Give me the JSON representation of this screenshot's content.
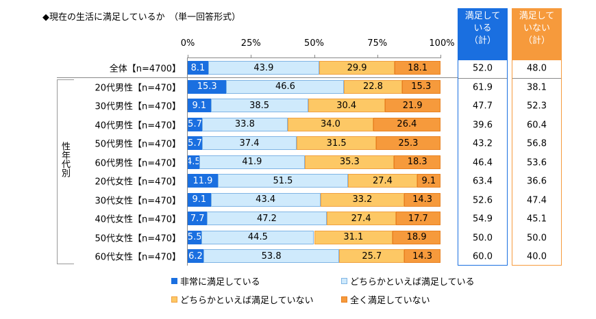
{
  "chart_data": {
    "type": "bar",
    "orientation": "horizontal-stacked-100",
    "title": "◆現在の生活に満足しているか　（単一回答形式）",
    "xticks": [
      "0%",
      "25%",
      "50%",
      "75%",
      "100%"
    ],
    "xlim": [
      0,
      100
    ],
    "group_label": "性年代別",
    "categories": [
      "全体【n=4700】",
      "20代男性【n=470】",
      "30代男性【n=470】",
      "40代男性【n=470】",
      "50代男性【n=470】",
      "60代男性【n=470】",
      "20代女性【n=470】",
      "30代女性【n=470】",
      "40代女性【n=470】",
      "50代女性【n=470】",
      "60代女性【n=470】"
    ],
    "series": [
      {
        "name": "非常に満足している",
        "color": "#1a6fe0",
        "values": [
          8.1,
          15.3,
          9.1,
          5.7,
          5.7,
          4.5,
          11.9,
          9.1,
          7.7,
          5.5,
          6.2
        ]
      },
      {
        "name": "どちらかといえば満足している",
        "color": "#cfeafc",
        "values": [
          43.9,
          46.6,
          38.5,
          33.8,
          37.4,
          41.9,
          51.5,
          43.4,
          47.2,
          44.5,
          53.8
        ]
      },
      {
        "name": "どちらかといえば満足していない",
        "color": "#fdc865",
        "values": [
          29.9,
          22.8,
          30.4,
          34.0,
          31.5,
          35.3,
          27.4,
          33.2,
          27.4,
          31.1,
          25.7
        ]
      },
      {
        "name": "全く満足していない",
        "color": "#f69a3c",
        "values": [
          18.1,
          15.3,
          21.9,
          26.4,
          25.3,
          18.3,
          9.1,
          14.3,
          17.7,
          18.9,
          14.3
        ]
      }
    ],
    "summary": [
      {
        "header": "満足して\nいる\n（計）",
        "color": "#1a6fe0",
        "values": [
          "52.0",
          "61.9",
          "47.7",
          "39.6",
          "43.2",
          "46.4",
          "63.4",
          "52.6",
          "54.9",
          "50.0",
          "60.0"
        ]
      },
      {
        "header": "満足して\nいない\n（計）",
        "color": "#f69a3c",
        "values": [
          "48.0",
          "38.1",
          "52.3",
          "60.4",
          "56.8",
          "53.6",
          "36.6",
          "47.4",
          "45.1",
          "50.0",
          "40.0"
        ]
      }
    ]
  }
}
